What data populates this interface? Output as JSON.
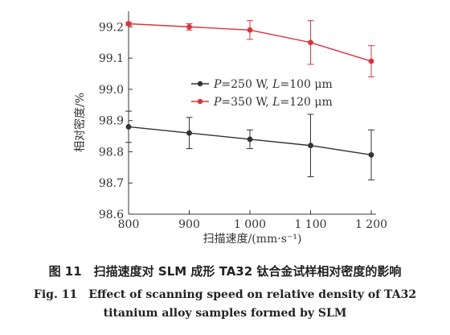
{
  "chart_data": {
    "type": "line",
    "x": [
      800,
      900,
      1000,
      1100,
      1200
    ],
    "x_tick_labels": [
      "800",
      "900",
      "1 000",
      "1 100",
      "1 200"
    ],
    "xlabel": "扫描速度/(mm·s⁻¹)",
    "ylabel": "相对密度/%",
    "ylim": [
      98.6,
      99.25
    ],
    "y_ticks": [
      98.6,
      98.7,
      98.8,
      98.9,
      99.0,
      99.1,
      99.2
    ],
    "y_tick_labels": [
      "98.6",
      "98.7",
      "98.8",
      "98.9",
      "99.0",
      "99.1",
      "99.2"
    ],
    "legend_position": "middle-left",
    "series": [
      {
        "label_parts": [
          "P",
          "=250 W, ",
          "L",
          "=100 μm"
        ],
        "color": "#333333",
        "values": [
          98.88,
          98.86,
          98.84,
          98.82,
          98.79
        ],
        "errors": [
          0.05,
          0.05,
          0.03,
          0.1,
          0.08
        ]
      },
      {
        "label_parts": [
          "P",
          "=350 W, ",
          "L",
          "=120 μm"
        ],
        "color": "#d9343f",
        "values": [
          99.21,
          99.2,
          99.19,
          99.15,
          99.09
        ],
        "errors": [
          0.005,
          0.01,
          0.03,
          0.07,
          0.05
        ]
      }
    ]
  },
  "caption": {
    "cn": "图 11　扫描速度对 SLM 成形 TA32 钛合金试样相对密度的影响",
    "en_line1": "Fig. 11　Effect of scanning speed on relative density of TA32",
    "en_line2": "titanium alloy samples formed by SLM"
  }
}
